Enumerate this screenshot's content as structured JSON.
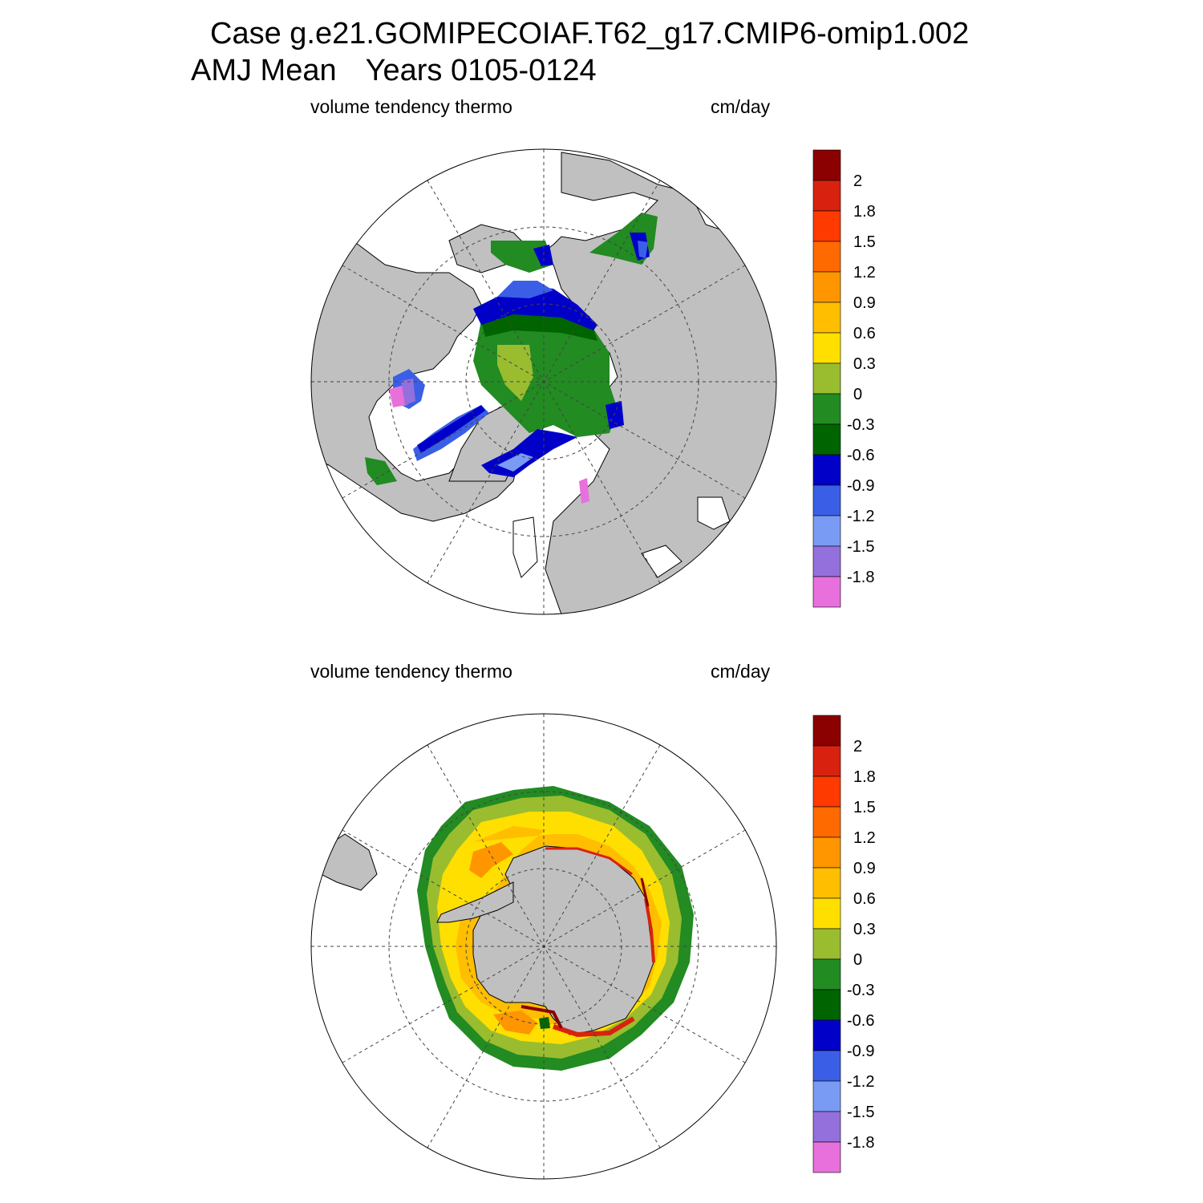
{
  "title": {
    "line1": "Case g.e21.GOMIPECOIAF.T62_g17.CMIP6-omip1.002",
    "line2_season": "AMJ Mean",
    "line2_years": "Years 0105-0124"
  },
  "panels": [
    {
      "id": "north",
      "hemisphere": "Northern Hemisphere polar stereographic",
      "left_label": "volume tendency thermo",
      "right_label": "cm/day"
    },
    {
      "id": "south",
      "hemisphere": "Southern Hemisphere polar stereographic",
      "left_label": "volume tendency thermo",
      "right_label": "cm/day"
    }
  ],
  "colorbar": {
    "labels": [
      "2",
      "1.8",
      "1.5",
      "1.2",
      "0.9",
      "0.6",
      "0.3",
      "0",
      "-0.3",
      "-0.6",
      "-0.9",
      "-1.2",
      "-1.5",
      "-1.8"
    ],
    "colors": [
      "#8B0000",
      "#D8220F",
      "#FF3A00",
      "#FF6A00",
      "#FF9600",
      "#FFBE00",
      "#FFDF00",
      "#99BD2F",
      "#228B22",
      "#006400",
      "#0000C8",
      "#3A5FE6",
      "#7A9BF4",
      "#9370DB",
      "#E870DC"
    ]
  },
  "map_colors": {
    "land": "#C0C0C0",
    "ocean": "#FFFFFF",
    "gridline": "#444444"
  }
}
